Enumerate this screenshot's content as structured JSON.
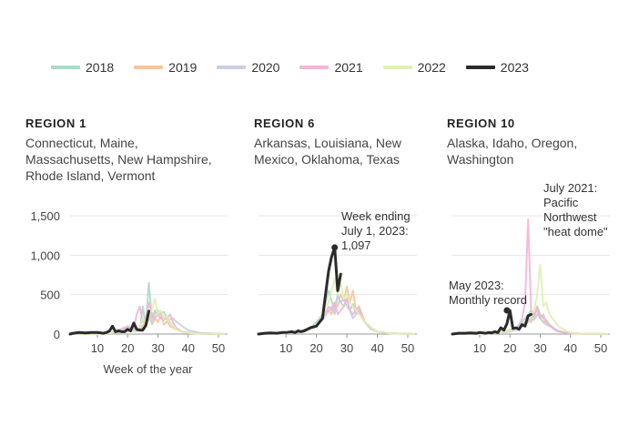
{
  "legend": [
    {
      "label": "2018",
      "color": "#a8dcc8"
    },
    {
      "label": "2019",
      "color": "#f7c49e"
    },
    {
      "label": "2020",
      "color": "#c7cfe3"
    },
    {
      "label": "2021",
      "color": "#f2b6d6"
    },
    {
      "label": "2022",
      "color": "#dff0b4"
    },
    {
      "label": "2023",
      "color": "#2b2b2b"
    }
  ],
  "chart_data": {
    "type": "line",
    "xlabel": "Week of the year",
    "xticks": [
      10,
      20,
      30,
      40,
      50
    ],
    "yticks": [
      0,
      500,
      1000,
      1500
    ],
    "ytick_labels": [
      "0",
      "500",
      "1,000",
      "1,500"
    ],
    "xlim": [
      1,
      53
    ],
    "ylim": [
      0,
      1500
    ],
    "grid": true,
    "legend_position": "top",
    "panels": [
      {
        "title": "REGION 1",
        "subtitle": [
          "Connecticut, Maine,",
          "Massachusetts, New Hampshire,",
          "Rhode Island, Vermont"
        ],
        "series": [
          {
            "name": "2018",
            "x": [
              1,
              10,
              15,
              18,
              20,
              22,
              24,
              25,
              26,
              27,
              28,
              29,
              30,
              31,
              32,
              33,
              34,
              35,
              36,
              38,
              40,
              44,
              52
            ],
            "y": [
              0,
              5,
              15,
              40,
              90,
              30,
              50,
              350,
              100,
              650,
              200,
              300,
              250,
              270,
              280,
              200,
              150,
              100,
              60,
              30,
              15,
              5,
              0
            ]
          },
          {
            "name": "2019",
            "x": [
              1,
              10,
              15,
              20,
              22,
              24,
              26,
              27,
              28,
              29,
              30,
              31,
              32,
              33,
              34,
              35,
              36,
              38,
              40,
              44,
              52
            ],
            "y": [
              0,
              5,
              20,
              35,
              40,
              60,
              150,
              300,
              120,
              200,
              150,
              250,
              120,
              160,
              100,
              80,
              60,
              30,
              20,
              10,
              0
            ]
          },
          {
            "name": "2020",
            "x": [
              1,
              10,
              15,
              20,
              22,
              24,
              26,
              27,
              28,
              29,
              30,
              31,
              32,
              33,
              34,
              35,
              36,
              38,
              40,
              44,
              52
            ],
            "y": [
              0,
              5,
              15,
              60,
              40,
              50,
              100,
              200,
              150,
              250,
              300,
              260,
              200,
              220,
              180,
              200,
              160,
              100,
              50,
              15,
              0
            ]
          },
          {
            "name": "2021",
            "x": [
              1,
              10,
              15,
              20,
              22,
              23,
              24,
              25,
              26,
              27,
              28,
              29,
              30,
              31,
              32,
              33,
              34,
              35,
              36,
              38,
              40,
              44,
              52
            ],
            "y": [
              0,
              5,
              20,
              100,
              60,
              250,
              350,
              150,
              200,
              400,
              250,
              200,
              250,
              200,
              180,
              200,
              250,
              150,
              80,
              30,
              15,
              5,
              0
            ]
          },
          {
            "name": "2022",
            "x": [
              1,
              10,
              15,
              20,
              22,
              24,
              25,
              26,
              27,
              28,
              29,
              30,
              31,
              32,
              33,
              34,
              35,
              36,
              38,
              40,
              44,
              52
            ],
            "y": [
              0,
              5,
              15,
              40,
              30,
              80,
              200,
              150,
              250,
              300,
              450,
              250,
              300,
              200,
              220,
              160,
              100,
              60,
              30,
              15,
              5,
              0
            ]
          },
          {
            "name": "2023",
            "x": [
              1,
              2,
              4,
              6,
              8,
              10,
              12,
              13,
              14,
              15,
              16,
              17,
              18,
              19,
              20,
              21,
              22,
              23,
              24,
              25,
              26,
              27
            ],
            "y": [
              0,
              10,
              20,
              15,
              20,
              20,
              10,
              20,
              40,
              100,
              30,
              40,
              30,
              30,
              60,
              40,
              140,
              60,
              50,
              50,
              110,
              290
            ]
          }
        ]
      },
      {
        "title": "REGION 6",
        "subtitle": [
          "Arkansas, Louisiana, New",
          "Mexico, Oklahoma, Texas"
        ],
        "annotation": {
          "text": [
            "Week ending",
            "July 1, 2023:",
            "1,097"
          ],
          "x": 26,
          "y": 1097
        },
        "series": [
          {
            "name": "2018",
            "x": [
              1,
              10,
              15,
              18,
              20,
              22,
              23,
              24,
              25,
              26,
              27,
              28,
              29,
              30,
              31,
              32,
              33,
              34,
              35,
              36,
              37,
              38,
              40,
              44,
              52
            ],
            "y": [
              0,
              10,
              40,
              80,
              150,
              250,
              400,
              550,
              420,
              300,
              500,
              400,
              350,
              450,
              300,
              380,
              250,
              300,
              200,
              150,
              100,
              60,
              30,
              10,
              0
            ]
          },
          {
            "name": "2019",
            "x": [
              1,
              10,
              15,
              18,
              20,
              22,
              24,
              25,
              26,
              27,
              28,
              29,
              30,
              31,
              32,
              33,
              34,
              35,
              36,
              38,
              40,
              44,
              52
            ],
            "y": [
              0,
              10,
              30,
              60,
              120,
              200,
              300,
              250,
              400,
              350,
              500,
              420,
              600,
              400,
              550,
              300,
              350,
              250,
              150,
              80,
              30,
              10,
              0
            ]
          },
          {
            "name": "2020",
            "x": [
              1,
              10,
              15,
              18,
              20,
              22,
              24,
              25,
              26,
              27,
              28,
              29,
              30,
              31,
              32,
              33,
              34,
              35,
              36,
              38,
              40,
              44,
              52
            ],
            "y": [
              0,
              10,
              30,
              60,
              100,
              180,
              300,
              350,
              250,
              500,
              400,
              450,
              350,
              300,
              200,
              250,
              300,
              200,
              150,
              80,
              30,
              10,
              0
            ]
          },
          {
            "name": "2021",
            "x": [
              1,
              10,
              15,
              18,
              20,
              22,
              24,
              25,
              26,
              27,
              28,
              29,
              30,
              31,
              32,
              33,
              34,
              35,
              36,
              38,
              40,
              44,
              52
            ],
            "y": [
              0,
              10,
              30,
              60,
              100,
              200,
              350,
              300,
              400,
              250,
              300,
              350,
              450,
              300,
              250,
              300,
              350,
              200,
              150,
              80,
              30,
              10,
              0
            ]
          },
          {
            "name": "2022",
            "x": [
              1,
              10,
              15,
              18,
              20,
              22,
              23,
              24,
              25,
              26,
              27,
              28,
              29,
              30,
              31,
              32,
              33,
              34,
              35,
              36,
              38,
              40,
              44,
              52
            ],
            "y": [
              0,
              10,
              30,
              60,
              120,
              200,
              350,
              400,
              550,
              700,
              500,
              650,
              450,
              500,
              400,
              350,
              300,
              250,
              200,
              150,
              80,
              30,
              10,
              0
            ]
          },
          {
            "name": "2023",
            "x": [
              1,
              3,
              5,
              7,
              9,
              10,
              12,
              13,
              14,
              15,
              16,
              17,
              18,
              19,
              20,
              21,
              22,
              23,
              24,
              25,
              26,
              27,
              28
            ],
            "y": [
              0,
              10,
              15,
              10,
              20,
              20,
              30,
              20,
              40,
              30,
              40,
              60,
              80,
              90,
              100,
              150,
              200,
              500,
              800,
              980,
              1097,
              550,
              760
            ]
          }
        ]
      },
      {
        "title": "REGION 10",
        "subtitle": [
          "Alaska, Idaho, Oregon,",
          "Washington"
        ],
        "annotations": [
          {
            "text": [
              "July 2021:",
              "Pacific",
              "Northwest",
              "\"heat dome\""
            ],
            "x": 26,
            "y": 1450
          },
          {
            "text": [
              "May 2023:",
              "Monthly record"
            ],
            "x": 19,
            "y": 300
          }
        ],
        "series": [
          {
            "name": "2018",
            "x": [
              1,
              10,
              15,
              20,
              22,
              24,
              26,
              27,
              28,
              29,
              30,
              31,
              32,
              33,
              34,
              35,
              36,
              38,
              40,
              44,
              52
            ],
            "y": [
              0,
              5,
              20,
              50,
              80,
              150,
              250,
              300,
              200,
              350,
              250,
              200,
              150,
              120,
              90,
              60,
              40,
              20,
              10,
              5,
              0
            ]
          },
          {
            "name": "2019",
            "x": [
              1,
              10,
              15,
              20,
              22,
              24,
              26,
              27,
              28,
              29,
              30,
              31,
              32,
              33,
              34,
              35,
              36,
              38,
              40,
              44,
              52
            ],
            "y": [
              0,
              5,
              15,
              40,
              60,
              100,
              200,
              150,
              250,
              300,
              200,
              150,
              180,
              120,
              80,
              50,
              30,
              20,
              10,
              5,
              0
            ]
          },
          {
            "name": "2020",
            "x": [
              1,
              10,
              15,
              20,
              22,
              24,
              26,
              27,
              28,
              29,
              30,
              31,
              32,
              33,
              34,
              35,
              36,
              38,
              40,
              44,
              52
            ],
            "y": [
              0,
              5,
              15,
              30,
              50,
              90,
              150,
              200,
              180,
              250,
              200,
              150,
              120,
              100,
              80,
              50,
              30,
              20,
              10,
              5,
              0
            ]
          },
          {
            "name": "2021",
            "x": [
              1,
              10,
              15,
              20,
              22,
              23,
              24,
              25,
              26,
              27,
              28,
              29,
              30,
              31,
              32,
              33,
              34,
              36,
              38,
              40,
              44,
              52
            ],
            "y": [
              0,
              5,
              15,
              40,
              60,
              120,
              200,
              400,
              1450,
              300,
              250,
              350,
              200,
              250,
              150,
              120,
              80,
              40,
              20,
              10,
              5,
              0
            ]
          },
          {
            "name": "2022",
            "x": [
              1,
              10,
              15,
              20,
              22,
              24,
              26,
              27,
              28,
              29,
              30,
              31,
              32,
              33,
              34,
              35,
              36,
              38,
              40,
              44,
              52
            ],
            "y": [
              0,
              5,
              15,
              40,
              60,
              100,
              200,
              250,
              300,
              500,
              880,
              350,
              400,
              250,
              200,
              150,
              100,
              50,
              20,
              5,
              0
            ]
          },
          {
            "name": "2023",
            "x": [
              1,
              3,
              5,
              7,
              9,
              10,
              12,
              13,
              14,
              15,
              16,
              17,
              18,
              19,
              20,
              21,
              22,
              23,
              24,
              25,
              26,
              27
            ],
            "y": [
              0,
              10,
              10,
              15,
              10,
              20,
              10,
              20,
              15,
              30,
              20,
              80,
              50,
              130,
              300,
              70,
              80,
              60,
              120,
              100,
              230,
              250
            ]
          }
        ]
      }
    ]
  }
}
